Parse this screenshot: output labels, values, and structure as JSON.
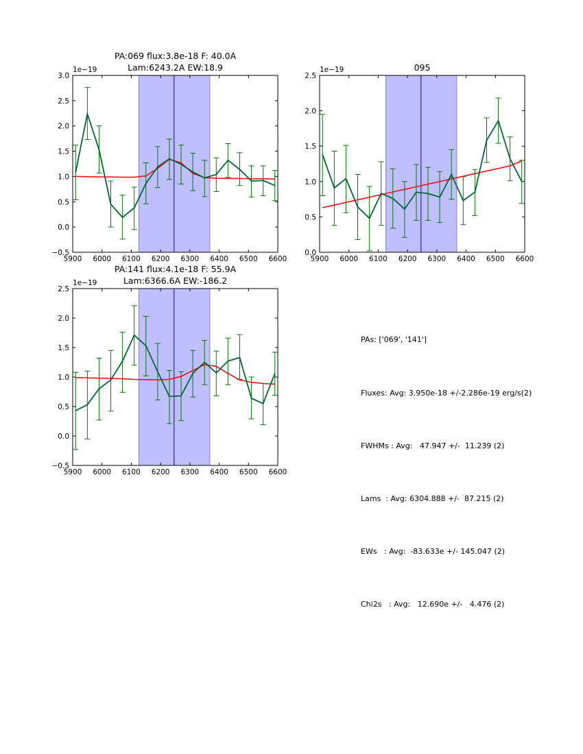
{
  "chart_data": [
    {
      "type": "line",
      "title": "PA:069 flux:3.8e-18 F: 40.0A",
      "subtitle": "Lam:6243.2A EW:18.9",
      "xlabel": "",
      "ylabel": "",
      "offset_label": "1e−19",
      "xlim": [
        5900,
        6600
      ],
      "ylim": [
        -0.5,
        3.0
      ],
      "xticks": [
        5900,
        6000,
        6100,
        6200,
        6300,
        6400,
        6500,
        6600
      ],
      "yticks": [
        -0.5,
        0.0,
        0.5,
        1.0,
        1.5,
        2.0,
        2.5,
        3.0
      ],
      "ytick_labels": [
        "−0.5",
        "0.0",
        "0.5",
        "1.0",
        "1.5",
        "2.0",
        "2.5",
        "3.0"
      ],
      "span": [
        6126,
        6368
      ],
      "vline": 6246,
      "x": [
        5910,
        5950,
        5990,
        6030,
        6070,
        6110,
        6150,
        6190,
        6230,
        6270,
        6310,
        6350,
        6390,
        6430,
        6470,
        6510,
        6550,
        6590
      ],
      "series": [
        {
          "name": "data",
          "color": "#006633",
          "values": [
            1.08,
            2.24,
            1.53,
            0.45,
            0.19,
            0.38,
            0.86,
            1.19,
            1.35,
            1.24,
            1.09,
            0.97,
            1.04,
            1.32,
            1.14,
            0.91,
            0.92,
            0.82
          ],
          "err_hi": [
            1.62,
            2.76,
            2.0,
            0.91,
            0.63,
            0.79,
            1.27,
            1.59,
            1.74,
            1.62,
            1.46,
            1.32,
            1.37,
            1.65,
            1.47,
            1.21,
            1.21,
            1.12
          ],
          "err_lo": [
            0.54,
            1.73,
            1.07,
            0.0,
            -0.24,
            -0.05,
            0.46,
            0.78,
            0.94,
            0.85,
            0.72,
            0.6,
            0.7,
            0.98,
            0.82,
            0.59,
            0.62,
            0.52
          ]
        },
        {
          "name": "fit",
          "color": "#ff0000",
          "values": [
            1.0,
            0.995,
            0.99,
            0.99,
            0.985,
            0.985,
            1.01,
            1.16,
            1.34,
            1.27,
            1.06,
            0.975,
            0.965,
            0.96,
            0.96,
            0.955,
            0.955,
            0.95
          ]
        }
      ]
    },
    {
      "type": "line",
      "title": "095",
      "subtitle": "",
      "xlabel": "",
      "ylabel": "",
      "offset_label": "1e−19",
      "xlim": [
        5900,
        6600
      ],
      "ylim": [
        0.0,
        2.5
      ],
      "xticks": [
        5900,
        6000,
        6100,
        6200,
        6300,
        6400,
        6500,
        6600
      ],
      "yticks": [
        0.0,
        0.5,
        1.0,
        1.5,
        2.0,
        2.5
      ],
      "ytick_labels": [
        "0.0",
        "0.5",
        "1.0",
        "1.5",
        "2.0",
        "2.5"
      ],
      "span": [
        6126,
        6368
      ],
      "vline": 6246,
      "x": [
        5910,
        5950,
        5990,
        6030,
        6070,
        6110,
        6150,
        6190,
        6230,
        6270,
        6310,
        6350,
        6390,
        6430,
        6470,
        6510,
        6550,
        6590
      ],
      "series": [
        {
          "name": "data",
          "color": "#006633",
          "values": [
            1.38,
            0.91,
            1.04,
            0.64,
            0.48,
            0.83,
            0.76,
            0.61,
            0.85,
            0.83,
            0.78,
            1.1,
            0.73,
            0.85,
            1.58,
            1.86,
            1.32,
            1.0
          ],
          "err_hi": [
            1.95,
            1.43,
            1.51,
            1.1,
            0.93,
            1.28,
            1.18,
            1.0,
            1.24,
            1.2,
            1.14,
            1.45,
            1.07,
            1.17,
            1.9,
            2.18,
            1.63,
            1.3
          ],
          "err_lo": [
            0.8,
            0.38,
            0.56,
            0.18,
            0.02,
            0.38,
            0.34,
            0.21,
            0.45,
            0.45,
            0.42,
            0.75,
            0.39,
            0.52,
            1.27,
            1.54,
            1.01,
            0.69
          ]
        },
        {
          "name": "fit",
          "color": "#ff0000",
          "values": [
            0.63,
            0.667,
            0.704,
            0.741,
            0.778,
            0.815,
            0.852,
            0.889,
            0.926,
            0.963,
            1.0,
            1.037,
            1.074,
            1.111,
            1.148,
            1.185,
            1.222,
            1.29
          ]
        }
      ]
    },
    {
      "type": "line",
      "title": "PA:141 flux:4.1e-18 F: 55.9A",
      "subtitle": "Lam:6366.6A EW:-186.2",
      "xlabel": "",
      "ylabel": "",
      "offset_label": "1e−19",
      "xlim": [
        5900,
        6600
      ],
      "ylim": [
        -0.5,
        2.5
      ],
      "xticks": [
        5900,
        6000,
        6100,
        6200,
        6300,
        6400,
        6500,
        6600
      ],
      "yticks": [
        -0.5,
        0.0,
        0.5,
        1.0,
        1.5,
        2.0,
        2.5
      ],
      "ytick_labels": [
        "−0.5",
        "0.0",
        "0.5",
        "1.0",
        "1.5",
        "2.0",
        "2.5"
      ],
      "span": [
        6126,
        6368
      ],
      "vline": 6246,
      "x": [
        5910,
        5950,
        5990,
        6030,
        6070,
        6110,
        6150,
        6190,
        6230,
        6270,
        6310,
        6350,
        6390,
        6430,
        6470,
        6510,
        6550,
        6590
      ],
      "series": [
        {
          "name": "data",
          "color": "#006633",
          "values": [
            0.43,
            0.53,
            0.8,
            0.95,
            1.27,
            1.71,
            1.53,
            1.09,
            0.67,
            0.68,
            1.06,
            1.25,
            1.07,
            1.27,
            1.33,
            0.64,
            0.55,
            1.06
          ],
          "err_hi": [
            1.08,
            1.1,
            1.32,
            1.45,
            1.76,
            2.21,
            2.03,
            1.57,
            1.11,
            1.09,
            1.45,
            1.62,
            1.44,
            1.66,
            1.72,
            1.0,
            0.89,
            1.42
          ],
          "err_lo": [
            -0.23,
            -0.05,
            0.27,
            0.42,
            0.74,
            1.2,
            1.02,
            0.61,
            0.21,
            0.26,
            0.66,
            0.87,
            0.68,
            0.87,
            0.96,
            0.29,
            0.19,
            0.69
          ]
        },
        {
          "name": "fit",
          "color": "#ff0000",
          "values": [
            0.99,
            0.985,
            0.98,
            0.975,
            0.97,
            0.96,
            0.955,
            0.95,
            0.96,
            1.01,
            1.11,
            1.21,
            1.18,
            1.06,
            0.95,
            0.91,
            0.89,
            0.88
          ]
        }
      ]
    }
  ],
  "summary": {
    "lines": [
      "PAs: ['069', '141']",
      "Fluxes: Avg: 3.950e-18 +/-2.286e-19 erg/s(2)",
      "FWHMs : Avg:   47.947 +/-  11.239 (2)",
      "Lams  : Avg: 6304.888 +/-  87.215 (2)",
      "EWs   : Avg:  -83.633e +/- 145.047 (2)",
      "Chi2s   : Avg:   12.690e +/-   4.476 (2)"
    ]
  },
  "colors": {
    "span_fill": "#bfbfff",
    "span_edge": "#8080c0",
    "vline": "#0000cc",
    "data": "#006633",
    "fit": "#ff0000",
    "errbar": "#007700"
  }
}
